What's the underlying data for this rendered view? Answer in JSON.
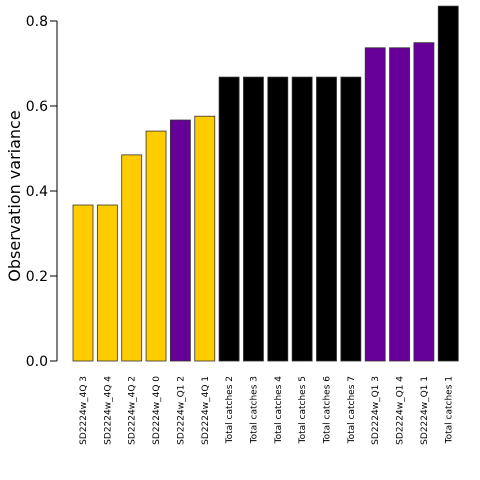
{
  "chart_data": {
    "type": "bar",
    "ylabel": "Observation variance",
    "xlabel": "",
    "ylim": [
      0,
      0.8
    ],
    "yticks": [
      0.0,
      0.2,
      0.4,
      0.6,
      0.8
    ],
    "ytick_labels": [
      "0.0",
      "0.2",
      "0.4",
      "0.6",
      "0.8"
    ],
    "grid": false,
    "categories": [
      "SD2224w_4Q 3",
      "SD2224w_4Q 4",
      "SD2224w_4Q 2",
      "SD2224w_4Q 0",
      "SD2224w_Q1 2",
      "SD2224w_4Q 1",
      "Total catches 2",
      "Total catches 3",
      "Total catches 4",
      "Total catches 5",
      "Total catches 6",
      "Total catches 7",
      "SD2224w_Q1 3",
      "SD2224w_Q1 4",
      "SD2224w_Q1 1",
      "Total catches 1"
    ],
    "values": [
      0.367,
      0.367,
      0.485,
      0.541,
      0.567,
      0.576,
      0.668,
      0.668,
      0.668,
      0.668,
      0.668,
      0.668,
      0.737,
      0.737,
      0.749,
      0.835
    ],
    "bar_colors": [
      "#ffcc00",
      "#ffcc00",
      "#ffcc00",
      "#ffcc00",
      "#660099",
      "#ffcc00",
      "#000000",
      "#000000",
      "#000000",
      "#000000",
      "#000000",
      "#000000",
      "#660099",
      "#660099",
      "#660099",
      "#000000"
    ]
  }
}
